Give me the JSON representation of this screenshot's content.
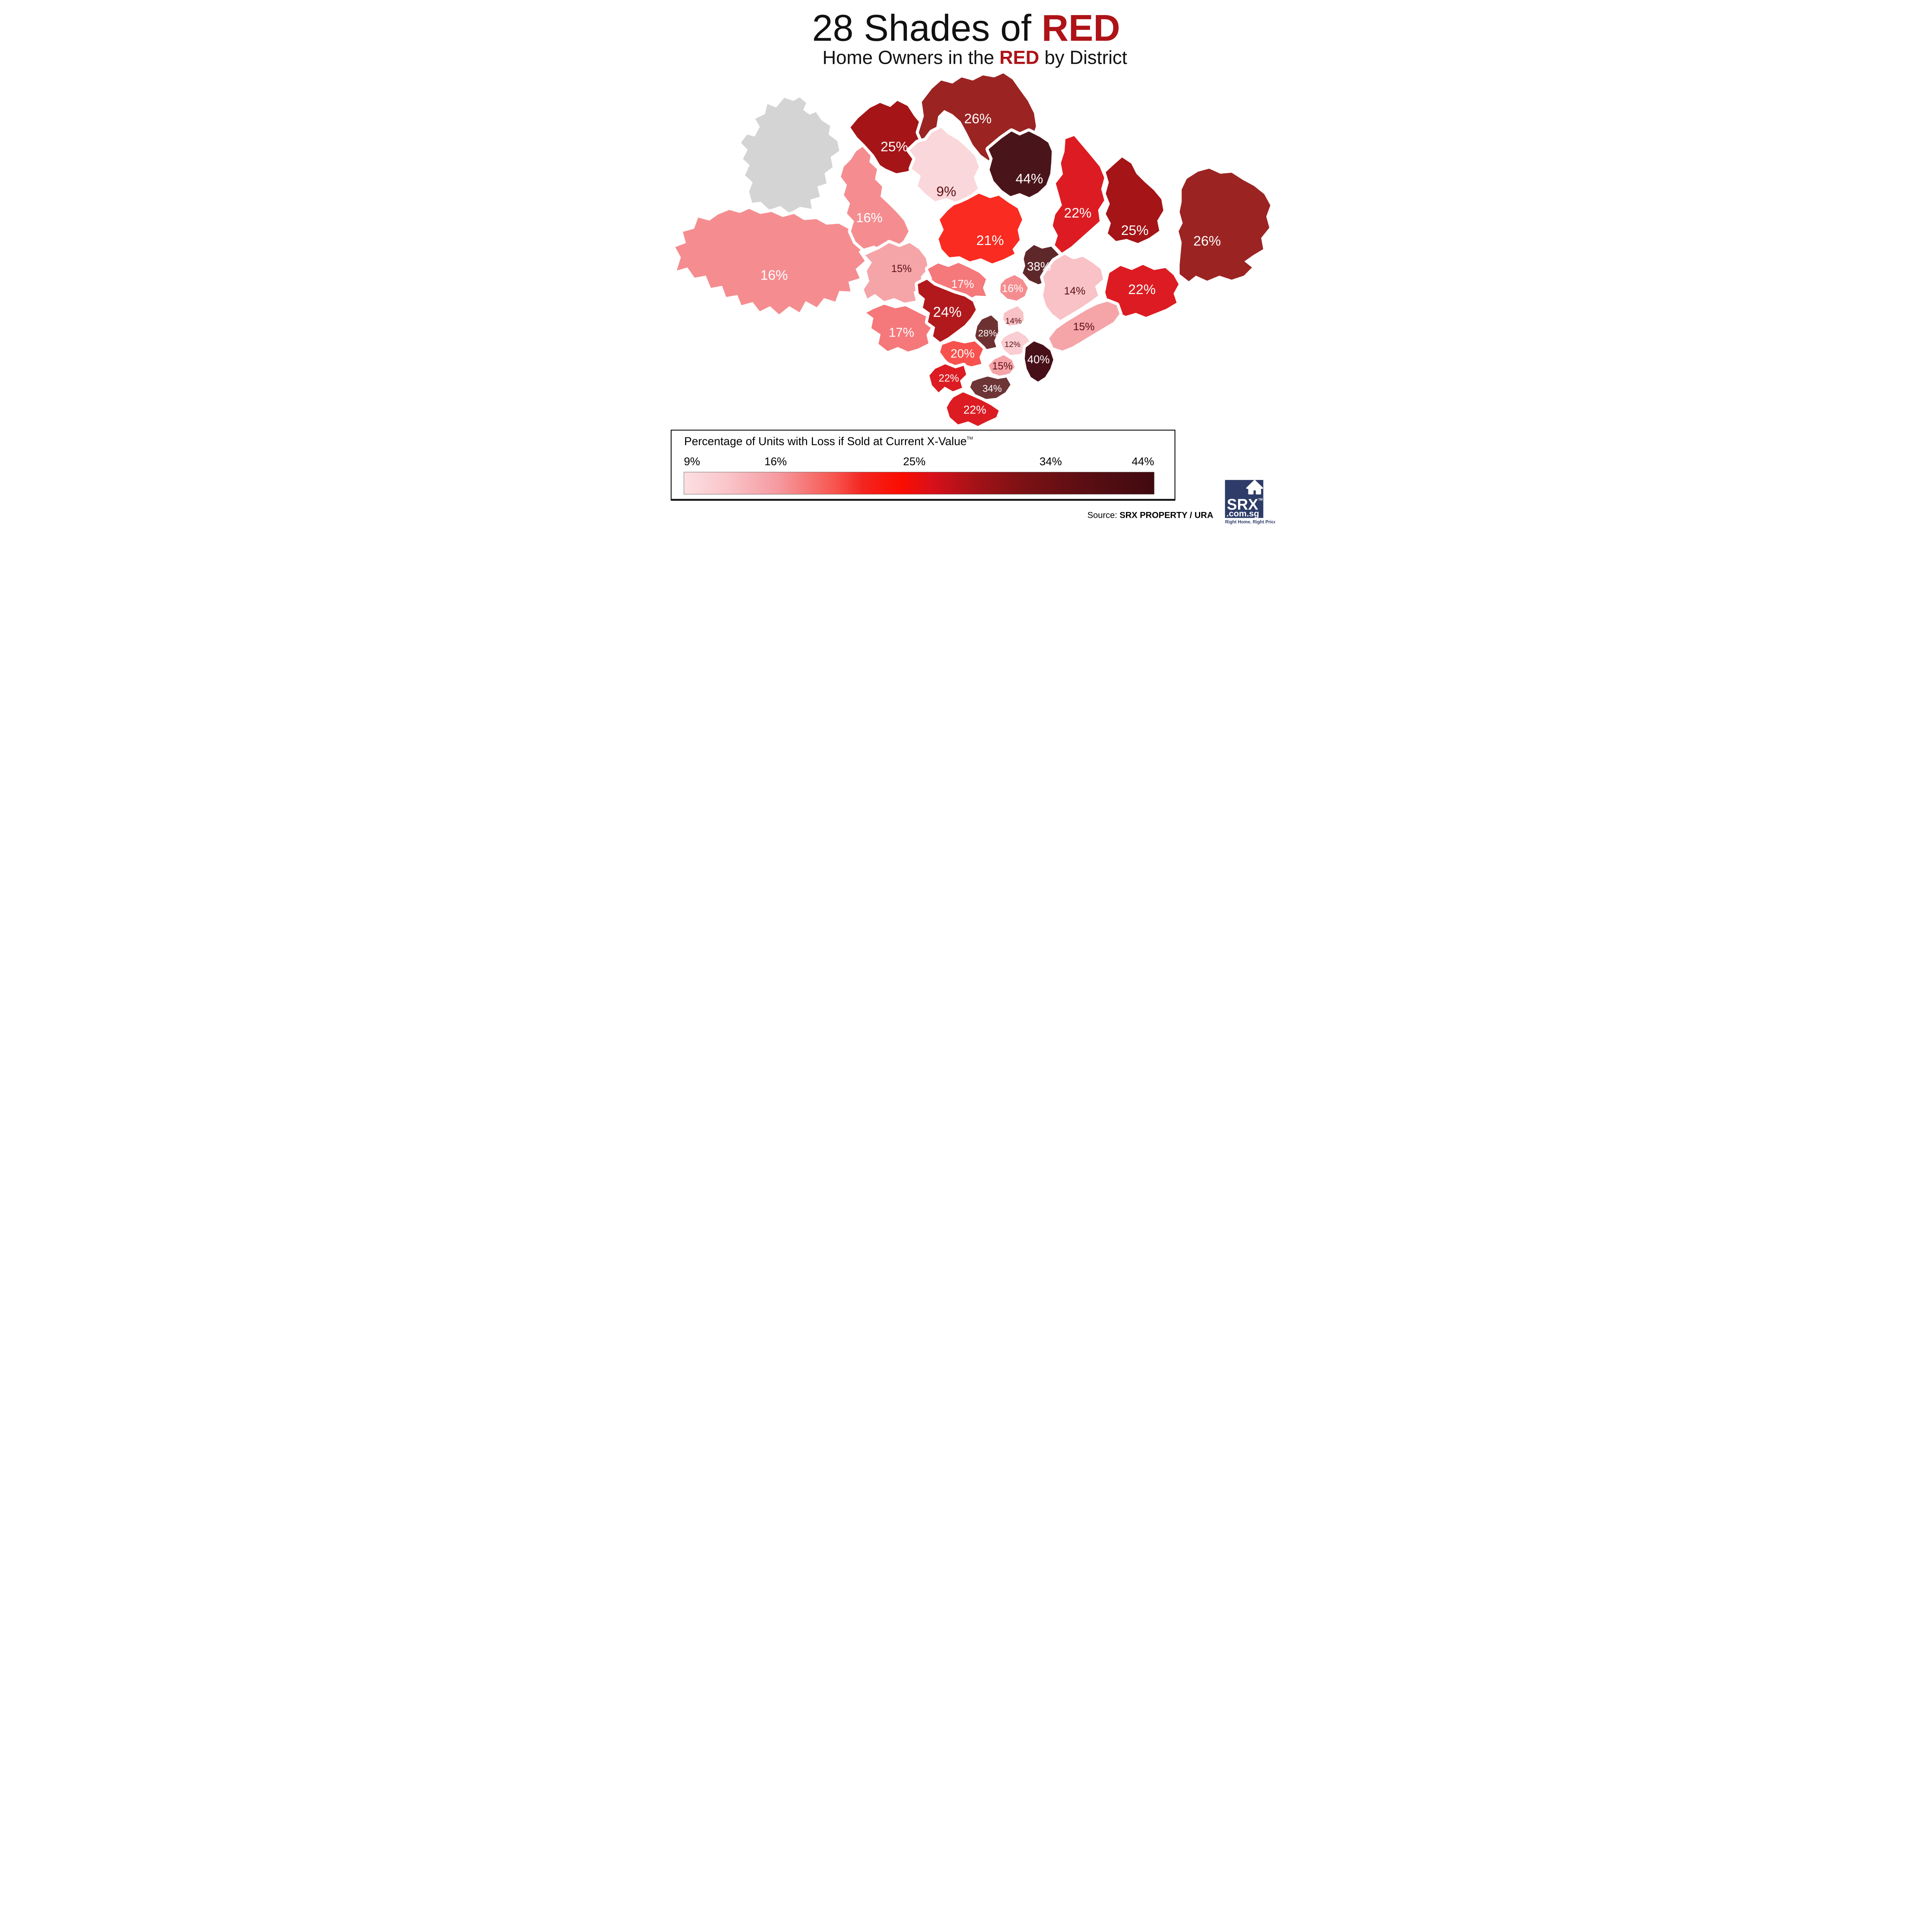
{
  "title": {
    "text": "28 Shades of ",
    "highlight": "RED"
  },
  "subtitle": {
    "pre": "Home Owners in the ",
    "highlight": "RED",
    "post": " by District"
  },
  "accent_color": "#ae1317",
  "map": {
    "no_data_color": "#d4d4d4",
    "districts": [
      {
        "value": "",
        "color": "#d4d4d4",
        "label_color": ""
      },
      {
        "value": "16%",
        "color": "#f58d90",
        "label_color": "#ffffff"
      },
      {
        "value": "16%",
        "color": "#f58d90",
        "label_color": "#ffffff"
      },
      {
        "value": "25%",
        "color": "#a51417",
        "label_color": "#ffffff"
      },
      {
        "value": "26%",
        "color": "#9b2423",
        "label_color": "#ffffff"
      },
      {
        "value": "9%",
        "color": "#fad7da",
        "label_color": "#5c0f14"
      },
      {
        "value": "44%",
        "color": "#4a151a",
        "label_color": "#ffffff"
      },
      {
        "value": "22%",
        "color": "#dc1c22",
        "label_color": "#ffffff"
      },
      {
        "value": "25%",
        "color": "#a51417",
        "label_color": "#ffffff"
      },
      {
        "value": "26%",
        "color": "#9b2423",
        "label_color": "#ffffff"
      },
      {
        "value": "22%",
        "color": "#dc1c22",
        "label_color": "#ffffff"
      },
      {
        "value": "21%",
        "color": "#fa2b21",
        "label_color": "#ffffff"
      },
      {
        "value": "38%",
        "color": "#5e282b",
        "label_color": "#ffffff"
      },
      {
        "value": "14%",
        "color": "#f8c2c6",
        "label_color": "#5c0f14"
      },
      {
        "value": "15%",
        "color": "#f5a4a8",
        "label_color": "#5c0f14"
      },
      {
        "value": "15%",
        "color": "#f5a4a8",
        "label_color": "#5c0f14"
      },
      {
        "value": "17%",
        "color": "#f5787b",
        "label_color": "#ffffff"
      },
      {
        "value": "16%",
        "color": "#f58d90",
        "label_color": "#ffffff"
      },
      {
        "value": "17%",
        "color": "#f5787b",
        "label_color": "#ffffff"
      },
      {
        "value": "24%",
        "color": "#b2191c",
        "label_color": "#ffffff"
      },
      {
        "value": "28%",
        "color": "#6e3132",
        "label_color": "#ffffff"
      },
      {
        "value": "14%",
        "color": "#f8c2c6",
        "label_color": "#5c0f14"
      },
      {
        "value": "12%",
        "color": "#f9cdd1",
        "label_color": "#5c0f14"
      },
      {
        "value": "20%",
        "color": "#f7524d",
        "label_color": "#ffffff"
      },
      {
        "value": "15%",
        "color": "#f5a4a8",
        "label_color": "#5c0f14"
      },
      {
        "value": "22%",
        "color": "#dc1c22",
        "label_color": "#ffffff"
      },
      {
        "value": "34%",
        "color": "#6d3536",
        "label_color": "#ffffff"
      },
      {
        "value": "40%",
        "color": "#471019",
        "label_color": "#ffffff"
      },
      {
        "value": "22%",
        "color": "#dc1c22",
        "label_color": "#ffffff"
      }
    ]
  },
  "legend": {
    "title": "Percentage of Units with Loss if Sold at Current X-Value",
    "trademark": "TM",
    "ticks": [
      {
        "label": "9%",
        "pos": 0
      },
      {
        "label": "16%",
        "pos": 19.5
      },
      {
        "label": "25%",
        "pos": 49
      },
      {
        "label": "34%",
        "pos": 78
      },
      {
        "label": "44%",
        "pos": 100
      }
    ],
    "gradient_stops": [
      "#fcdfe2 0%",
      "#f9c6ca 9%",
      "#f59aa0 20%",
      "#f7564f 32%",
      "#f32520 38%",
      "#fb0d00 46%",
      "#d8101b 53%",
      "#a31217 62%",
      "#7c1114 72%",
      "#5b0e13 85%",
      "#400a10 100%"
    ]
  },
  "source": {
    "prefix": "Source: ",
    "credit": "SRX PROPERTY / URA"
  },
  "logo": {
    "brand": "SRX",
    "trademark": "TM",
    "domain": ".com.sg",
    "tagline": "Right Home. Right Price.",
    "bg_color": "#2d3c68"
  },
  "chart_data": {
    "type": "choropleth",
    "region": "Singapore postal districts",
    "title": "28 Shades of RED — Home Owners in the RED by District",
    "unit": "Percentage of Units with Loss if Sold at Current X-Value",
    "values": [
      16,
      16,
      25,
      26,
      9,
      44,
      22,
      25,
      26,
      22,
      21,
      38,
      14,
      15,
      15,
      17,
      16,
      17,
      24,
      28,
      14,
      12,
      20,
      15,
      22,
      34,
      40,
      22
    ],
    "scale_min": 9,
    "scale_max": 44,
    "legend_ticks": [
      "9%",
      "16%",
      "25%",
      "34%",
      "44%"
    ],
    "no_data_regions": 1
  }
}
